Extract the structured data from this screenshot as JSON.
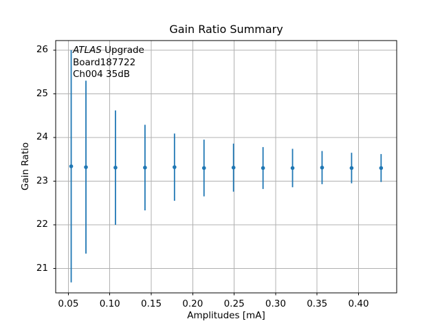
{
  "chart_data": {
    "type": "scatter",
    "subtype": "errorbar",
    "title": "Gain Ratio Summary",
    "xlabel": "Amplitudes [mA]",
    "ylabel": "Gain Ratio",
    "annotation": {
      "line1_italic": "ATLAS",
      "line1_rest": " Upgrade",
      "line2": "Board187722",
      "line3": "Ch004 35dB"
    },
    "x": [
      0.0534,
      0.0712,
      0.1068,
      0.1424,
      0.178,
      0.2136,
      0.2492,
      0.2848,
      0.3204,
      0.356,
      0.3916,
      0.4272
    ],
    "y": [
      23.34,
      23.32,
      23.31,
      23.31,
      23.32,
      23.3,
      23.31,
      23.3,
      23.3,
      23.31,
      23.3,
      23.3
    ],
    "yerr": [
      2.66,
      1.98,
      1.31,
      0.98,
      0.77,
      0.65,
      0.55,
      0.48,
      0.44,
      0.38,
      0.35,
      0.32
    ],
    "xlim": [
      0.0347,
      0.446
    ],
    "ylim": [
      20.44,
      26.22
    ],
    "xticks": [
      0.05,
      0.1,
      0.15,
      0.2,
      0.25,
      0.3,
      0.35,
      0.4
    ],
    "xtick_labels": [
      "0.05",
      "0.10",
      "0.15",
      "0.20",
      "0.25",
      "0.30",
      "0.35",
      "0.40"
    ],
    "yticks": [
      21,
      22,
      23,
      24,
      25,
      26
    ],
    "ytick_labels": [
      "21",
      "22",
      "23",
      "24",
      "25",
      "26"
    ],
    "grid": true,
    "legend": "none",
    "series_color": "#1f77b4",
    "grid_color": "#b0b0b0",
    "axis_color": "#000000",
    "background": "#ffffff"
  }
}
